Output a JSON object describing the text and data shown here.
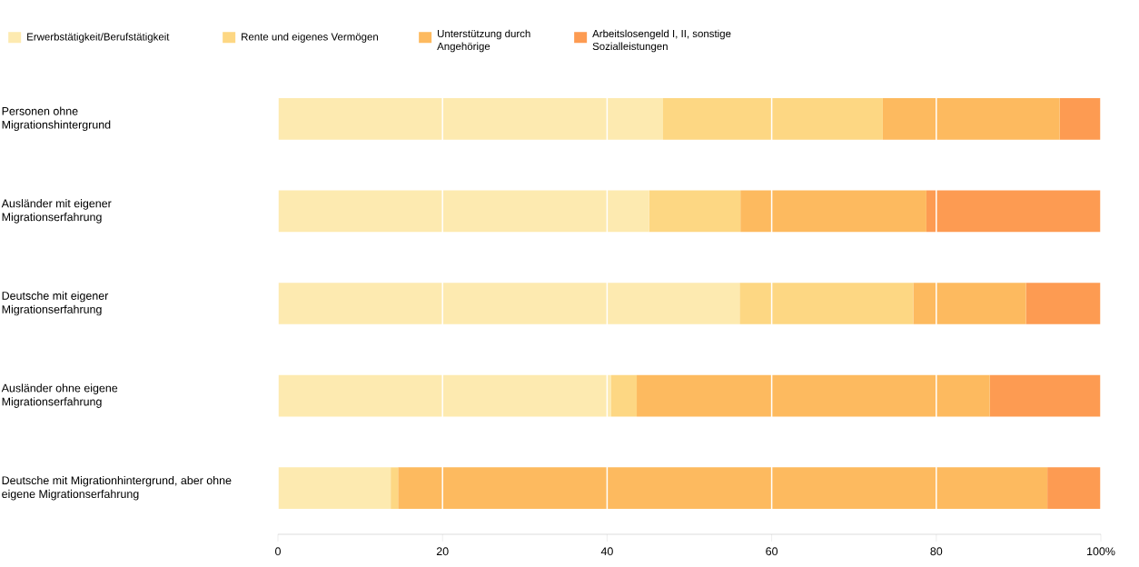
{
  "chart_data": {
    "type": "bar",
    "orientation": "horizontal",
    "stacked": true,
    "categories": [
      "Personen ohne Migrationshintergrund",
      "Ausländer mit eigener Migrationserfahrung",
      "Deutsche mit eigener Migrationserfahrung",
      "Ausländer ohne eigene Migrationserfahrung",
      "Deutsche mit Migrationhintergrund, aber ohne eigene Migrationserfahrung"
    ],
    "series": [
      {
        "name": "Erwerbstätigkeit/Berufstätigkeit",
        "color": "#fdeab0",
        "values": [
          46.8,
          45.1,
          56.1,
          40.5,
          13.7
        ]
      },
      {
        "name": "Rente und eigenes Vermögen",
        "color": "#fdd783",
        "values": [
          26.7,
          11.1,
          21.1,
          3.1,
          0.9
        ]
      },
      {
        "name": "Unterstützung durch Angehörige",
        "color": "#fdba5f",
        "values": [
          21.5,
          22.6,
          13.7,
          42.9,
          78.9
        ]
      },
      {
        "name": "Arbeitslosengeld I, II, sonstige Sozialleistungen",
        "color": "#fd9b52",
        "values": [
          5.0,
          21.2,
          9.1,
          13.5,
          6.5
        ]
      }
    ],
    "xlim": [
      0,
      100
    ],
    "xticks": [
      0,
      20,
      40,
      60,
      80,
      {
        "value": 100,
        "label": "100%"
      }
    ],
    "grid": "x",
    "legend": "top"
  }
}
